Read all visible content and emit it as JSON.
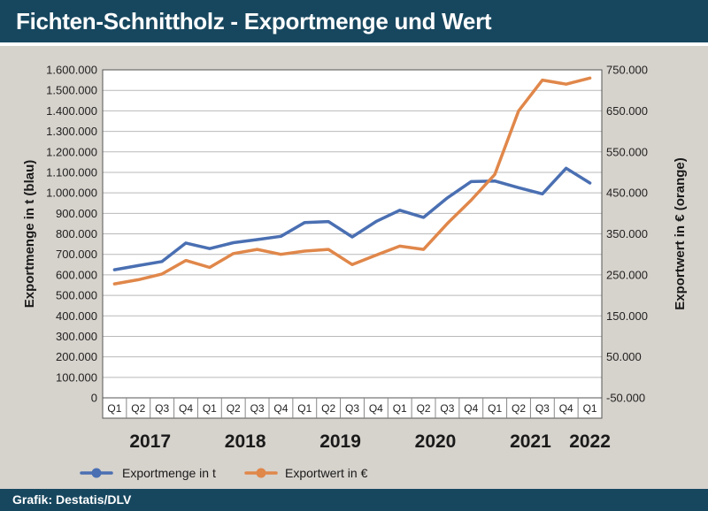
{
  "header": {
    "title": "Fichten-Schnittholz - Exportmenge und Wert"
  },
  "footer": {
    "source": "Grafik: Destatis/DLV"
  },
  "colors": {
    "header_bg": "#17475f",
    "series_menge": "#4a6fb2",
    "series_wert": "#e0874a",
    "grid": "#b9b9b9"
  },
  "chart_data": {
    "type": "line",
    "title": "Fichten-Schnittholz - Exportmenge und Wert",
    "ylabel_left": "Exportmenge in t (blau)",
    "ylabel_right": "Exportwert in € (orange)",
    "y_left_ticks": [
      "0",
      "100.000",
      "200.000",
      "300.000",
      "400.000",
      "500.000",
      "600.000",
      "700.000",
      "800.000",
      "900.000",
      "1.000.000",
      "1.100.000",
      "1.200.000",
      "1.300.000",
      "1.400.000",
      "1.500.000",
      "1.600.000"
    ],
    "y_right_ticks": [
      "-50.000",
      "50.000",
      "150.000",
      "250.000",
      "350.000",
      "450.000",
      "550.000",
      "650.000",
      "750.000"
    ],
    "ylim_left": [
      0,
      1600000
    ],
    "ylim_right": [
      -50000,
      750000
    ],
    "categories": [
      "Q1",
      "Q2",
      "Q3",
      "Q4",
      "Q1",
      "Q2",
      "Q3",
      "Q4",
      "Q1",
      "Q2",
      "Q3",
      "Q4",
      "Q1",
      "Q2",
      "Q3",
      "Q4",
      "Q1",
      "Q2",
      "Q3",
      "Q4",
      "Q1"
    ],
    "years": [
      {
        "label": "2017",
        "start": 0,
        "count": 4
      },
      {
        "label": "2018",
        "start": 4,
        "count": 4
      },
      {
        "label": "2019",
        "start": 8,
        "count": 4
      },
      {
        "label": "2020",
        "start": 12,
        "count": 4
      },
      {
        "label": "2021",
        "start": 16,
        "count": 4
      },
      {
        "label": "2022",
        "start": 20,
        "count": 1
      }
    ],
    "grid": true,
    "legend_position": "bottom",
    "series": [
      {
        "name": "Exportmenge in t",
        "axis": "left",
        "values": [
          625000,
          645000,
          665000,
          755000,
          728000,
          757000,
          772000,
          788000,
          855000,
          860000,
          785000,
          860000,
          915000,
          880000,
          975000,
          1055000,
          1058000,
          1025000,
          995000,
          1120000,
          1048000
        ]
      },
      {
        "name": "Exportwert in €",
        "axis": "right",
        "values": [
          228000,
          238000,
          252000,
          285000,
          268000,
          302000,
          312000,
          300000,
          308000,
          312000,
          275000,
          298000,
          320000,
          312000,
          375000,
          432000,
          495000,
          650000,
          725000,
          715000,
          730000
        ]
      }
    ]
  }
}
